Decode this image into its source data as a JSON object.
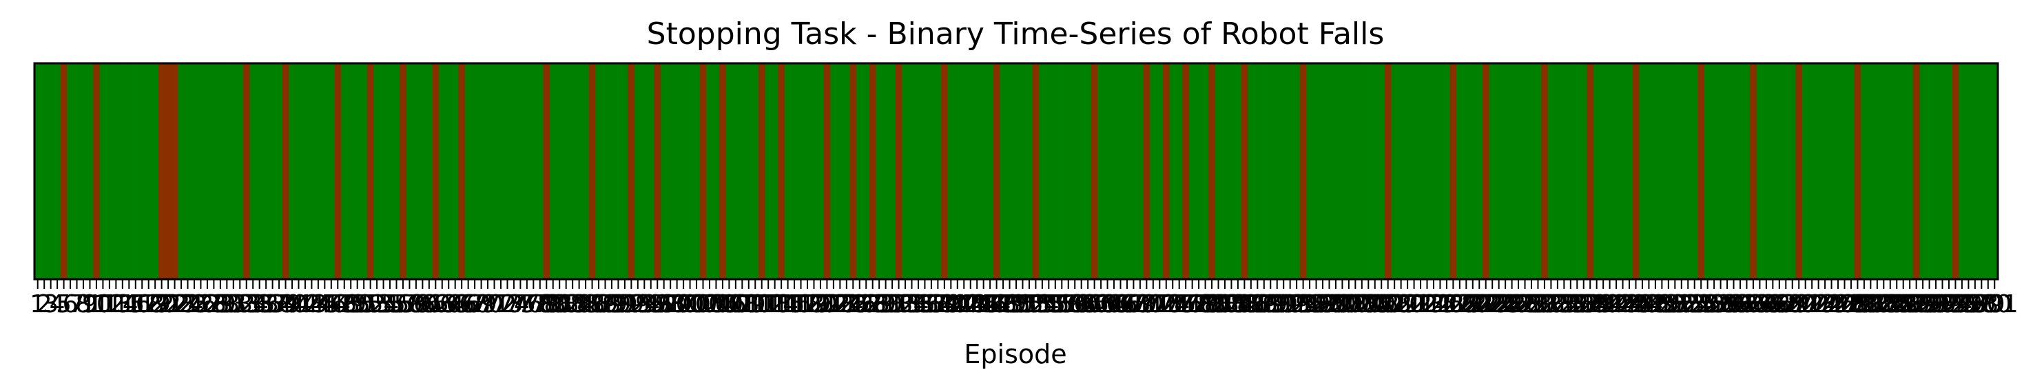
{
  "chart_data": {
    "type": "heatmap",
    "title": "Stopping Task - Binary Time-Series of Robot Falls",
    "xlabel": "Episode",
    "ylabel": "",
    "x_start": 1,
    "x_end": 301,
    "xlim": [
      1,
      301
    ],
    "grid": false,
    "legend": "none",
    "colors": {
      "no_fall": "#008000",
      "fall": "#8b2e00"
    },
    "fall_episodes": [
      5,
      10,
      20,
      21,
      22,
      33,
      39,
      47,
      52,
      57,
      62,
      66,
      79,
      86,
      92,
      96,
      103,
      106,
      112,
      115,
      122,
      126,
      129,
      133,
      140,
      148,
      154,
      163,
      171,
      174,
      177,
      181,
      186,
      195,
      208,
      218,
      223,
      232,
      239,
      246,
      256,
      264,
      271,
      280,
      289,
      295
    ]
  }
}
